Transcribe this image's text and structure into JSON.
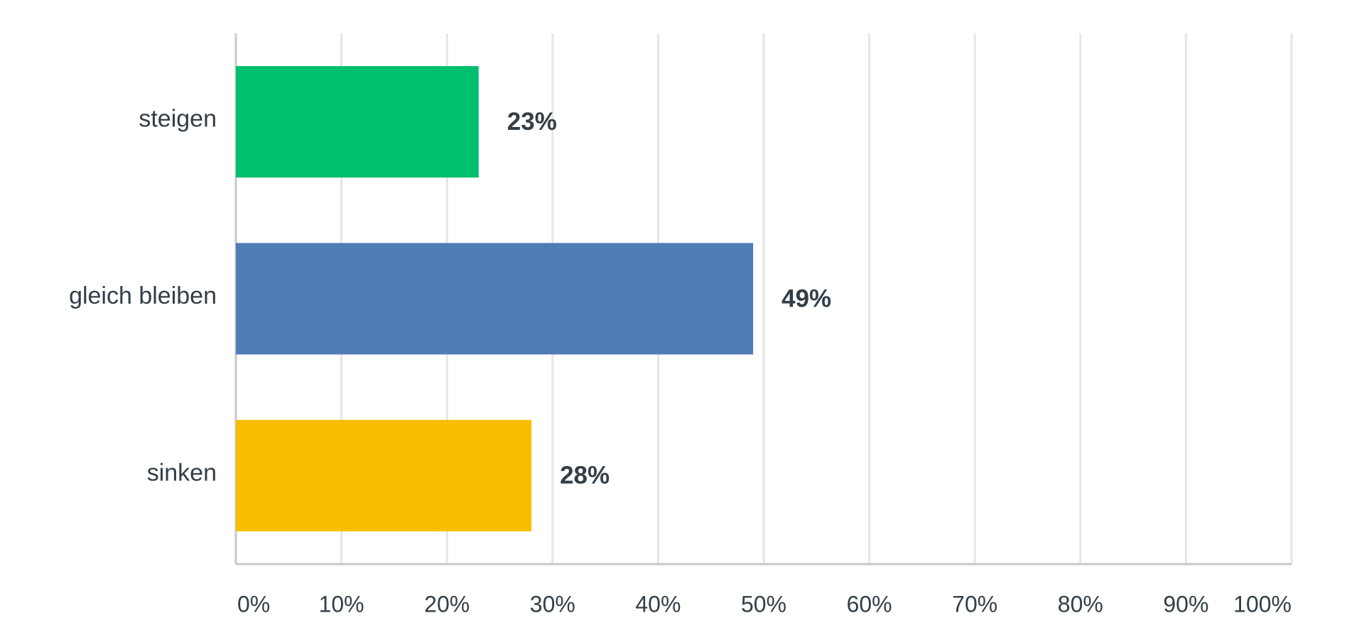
{
  "chart_data": {
    "type": "hbar",
    "categories": [
      "steigen",
      "gleich bleiben",
      "sinken"
    ],
    "values": [
      23,
      49,
      28
    ],
    "value_labels": [
      "23%",
      "49%",
      "28%"
    ],
    "colors": [
      "#00bf6f",
      "#507cb6",
      "#f9be00"
    ],
    "xlim": [
      0,
      100
    ],
    "xticks": [
      {
        "value": 0,
        "label": "0%"
      },
      {
        "value": 10,
        "label": "10%"
      },
      {
        "value": 20,
        "label": "20%"
      },
      {
        "value": 30,
        "label": "30%"
      },
      {
        "value": 40,
        "label": "40%"
      },
      {
        "value": 50,
        "label": "50%"
      },
      {
        "value": 60,
        "label": "60%"
      },
      {
        "value": 70,
        "label": "70%"
      },
      {
        "value": 80,
        "label": "80%"
      },
      {
        "value": 90,
        "label": "90%"
      },
      {
        "value": 100,
        "label": "100%"
      }
    ],
    "grid": true
  }
}
